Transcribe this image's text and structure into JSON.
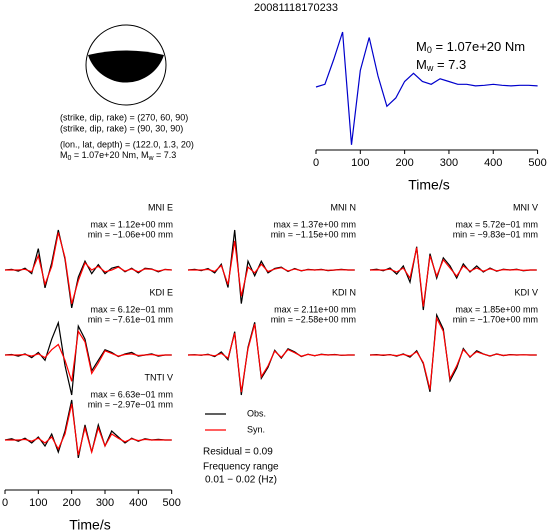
{
  "header": {
    "title": "20081118170233"
  },
  "focal_mechanism": {
    "lines": [
      "(strike, dip, rake) = (270, 60, 90)",
      "(strike, dip, rake) = (90, 30, 90)",
      "(lon., lat, depth) = (122.0, 1.3, 20)"
    ],
    "moment_line": {
      "parts": [
        "M",
        "0",
        " = 1.07e+20 Nm, M",
        "w",
        " = 7.3"
      ]
    }
  },
  "fit": {
    "residual": "Residual = 0.09",
    "frequency_title": "Frequency range",
    "frequency_band": "0.01 − 0.02 (Hz)"
  },
  "chart_data": [
    {
      "type": "line",
      "xlabel": "Time/s",
      "xlim": [
        0,
        510
      ],
      "xticks": [
        0,
        100,
        200,
        300,
        400,
        500
      ],
      "annotations": [
        {
          "parts": [
            "M",
            "0",
            " = 1.07e+20 Nm"
          ]
        },
        {
          "parts": [
            "M",
            "w",
            " = 7.3"
          ]
        }
      ],
      "x": [
        0,
        20,
        40,
        60,
        80,
        100,
        120,
        140,
        160,
        180,
        200,
        220,
        240,
        260,
        280,
        300,
        320,
        340,
        360,
        380,
        400,
        420,
        440,
        460,
        480,
        500
      ],
      "series": [
        {
          "color": "#0000cc",
          "values": [
            0,
            0.05,
            0.5,
            1,
            -1.05,
            0.3,
            0.9,
            0.2,
            -0.35,
            -0.2,
            0.1,
            0.25,
            0.1,
            0.05,
            0.15,
            0.1,
            0.05,
            0.05,
            0.02,
            0.03,
            0.05,
            0.03,
            0.02,
            0.03,
            0.03,
            0.02
          ]
        }
      ]
    },
    {
      "type": "line",
      "title": "MNI E",
      "annotations": [
        "max = 1.12e+00 mm",
        "min = −1.06e+00 mm"
      ],
      "xlim": [
        0,
        510
      ],
      "x": [
        0,
        20,
        40,
        60,
        80,
        100,
        120,
        140,
        160,
        180,
        200,
        220,
        240,
        260,
        280,
        300,
        320,
        340,
        360,
        380,
        400,
        420,
        440,
        460,
        480,
        500
      ],
      "series": [
        {
          "name": "Obs.",
          "color": "#000000",
          "values": [
            0,
            0.02,
            -0.03,
            0.05,
            -0.1,
            0.6,
            -0.5,
            0.2,
            1.12,
            0.3,
            -1.06,
            -0.2,
            0.25,
            -0.1,
            0.15,
            -0.1,
            0.05,
            0.1,
            -0.05,
            0.05,
            -0.08,
            0.05,
            0.03,
            -0.05,
            0.02,
            0
          ]
        },
        {
          "name": "Syn.",
          "color": "#ff0000",
          "values": [
            0,
            0,
            0,
            0.02,
            -0.05,
            0.4,
            -0.4,
            0.1,
            1.05,
            0.35,
            -0.95,
            -0.3,
            0.2,
            0,
            0.1,
            -0.05,
            0,
            0.08,
            -0.03,
            0.03,
            -0.05,
            0.03,
            0.02,
            -0.03,
            0.01,
            0
          ]
        }
      ]
    },
    {
      "type": "line",
      "title": "MNI N",
      "annotations": [
        "max = 1.37e+00 mm",
        "min = −1.15e+00 mm"
      ],
      "xlim": [
        0,
        510
      ],
      "x": [
        0,
        20,
        40,
        60,
        80,
        100,
        120,
        140,
        160,
        180,
        200,
        220,
        240,
        260,
        280,
        300,
        320,
        340,
        360,
        380,
        400,
        420,
        440,
        460,
        480,
        500
      ],
      "series": [
        {
          "name": "Obs.",
          "color": "#000000",
          "values": [
            0,
            0.02,
            -0.02,
            0.05,
            -0.1,
            0.2,
            -0.6,
            1.37,
            -1.15,
            0.3,
            -0.2,
            0.3,
            -0.1,
            0.05,
            0.1,
            -0.05,
            0.05,
            -0.03,
            0.02,
            0,
            0.02,
            -0.02,
            0,
            0.02,
            0,
            0
          ]
        },
        {
          "name": "Syn.",
          "color": "#ff0000",
          "values": [
            0,
            0,
            0,
            0.02,
            -0.05,
            0.15,
            -0.5,
            1.0,
            -0.9,
            0.1,
            -0.1,
            0.2,
            -0.05,
            0.03,
            0.08,
            -0.03,
            0.03,
            -0.02,
            0.01,
            0,
            0.01,
            -0.01,
            0,
            0.01,
            0,
            0
          ]
        }
      ]
    },
    {
      "type": "line",
      "title": "MNI V",
      "annotations": [
        "max = 5.72e−01 mm",
        "min = −9.83e−01 mm"
      ],
      "xlim": [
        0,
        510
      ],
      "x": [
        0,
        20,
        40,
        60,
        80,
        100,
        120,
        140,
        160,
        180,
        200,
        220,
        240,
        260,
        280,
        300,
        320,
        340,
        360,
        380,
        400,
        420,
        440,
        460,
        480,
        500
      ],
      "series": [
        {
          "name": "Obs.",
          "color": "#000000",
          "values": [
            0,
            0.02,
            -0.02,
            0.05,
            -0.1,
            0.1,
            -0.3,
            0.572,
            -0.983,
            0.4,
            -0.2,
            0.3,
            0.1,
            -0.2,
            0.15,
            -0.05,
            0.1,
            -0.05,
            0.05,
            -0.03,
            0.02,
            0,
            0.02,
            -0.02,
            0,
            0
          ]
        },
        {
          "name": "Syn.",
          "color": "#ff0000",
          "values": [
            0,
            0,
            0,
            0.02,
            -0.05,
            0.05,
            -0.2,
            0.55,
            -0.9,
            0.35,
            -0.15,
            0.25,
            0.05,
            -0.15,
            0.1,
            -0.03,
            0.05,
            -0.03,
            0.03,
            -0.02,
            0.01,
            0,
            0.01,
            -0.01,
            0,
            0
          ]
        }
      ]
    },
    {
      "type": "line",
      "title": "KDI E",
      "annotations": [
        "max = 6.12e−01 mm",
        "min = −7.61e−01 mm"
      ],
      "xlim": [
        0,
        510
      ],
      "x": [
        0,
        20,
        40,
        60,
        80,
        100,
        120,
        140,
        160,
        180,
        200,
        220,
        240,
        260,
        280,
        300,
        320,
        340,
        360,
        380,
        400,
        420,
        440,
        460,
        480,
        500
      ],
      "series": [
        {
          "name": "Obs.",
          "color": "#000000",
          "values": [
            0,
            0.01,
            -0.02,
            0.02,
            -0.05,
            0.05,
            -0.1,
            0.3,
            0.612,
            -0.2,
            -0.761,
            0.55,
            0.3,
            -0.3,
            -0.1,
            0.1,
            0.05,
            -0.03,
            0.02,
            0.05,
            -0.02,
            0,
            0.02,
            -0.02,
            0,
            0
          ]
        },
        {
          "name": "Syn.",
          "color": "#ff0000",
          "values": [
            0,
            0,
            0,
            0.01,
            -0.02,
            0.02,
            -0.05,
            0.1,
            0.2,
            -0.1,
            -0.5,
            0.45,
            0.25,
            -0.35,
            -0.15,
            0.08,
            0.03,
            -0.02,
            0.01,
            0.02,
            -0.01,
            0,
            0.01,
            -0.01,
            0,
            0
          ]
        }
      ]
    },
    {
      "type": "line",
      "title": "KDI N",
      "annotations": [
        "max = 2.11e+00 mm",
        "min = −2.58e+00 mm"
      ],
      "xlim": [
        0,
        510
      ],
      "x": [
        0,
        20,
        40,
        60,
        80,
        100,
        120,
        140,
        160,
        180,
        200,
        220,
        240,
        260,
        280,
        300,
        320,
        340,
        360,
        380,
        400,
        420,
        440,
        460,
        480,
        500
      ],
      "series": [
        {
          "name": "Obs.",
          "color": "#000000",
          "values": [
            0,
            0.02,
            -0.02,
            0.05,
            -0.1,
            0.2,
            -0.3,
            1.5,
            -2.58,
            0.5,
            2.11,
            -1.5,
            -0.8,
            0.3,
            -0.2,
            0.4,
            0.2,
            -0.1,
            0.05,
            -0.05,
            0.05,
            0,
            0.03,
            -0.02,
            0,
            0
          ]
        },
        {
          "name": "Syn.",
          "color": "#ff0000",
          "values": [
            0,
            0,
            0,
            0.02,
            -0.05,
            0.1,
            -0.2,
            1.4,
            -2.4,
            0.4,
            2.0,
            -1.4,
            -0.7,
            0.25,
            -0.15,
            0.35,
            0.15,
            -0.08,
            0.04,
            -0.04,
            0.03,
            0,
            0.02,
            -0.01,
            0,
            0
          ]
        }
      ]
    },
    {
      "type": "line",
      "title": "KDI V",
      "annotations": [
        "max = 1.85e+00 mm",
        "min = −1.70e+00 mm"
      ],
      "xlim": [
        0,
        510
      ],
      "x": [
        0,
        20,
        40,
        60,
        80,
        100,
        120,
        140,
        160,
        180,
        200,
        220,
        240,
        260,
        280,
        300,
        320,
        340,
        360,
        380,
        400,
        420,
        440,
        460,
        480,
        500
      ],
      "series": [
        {
          "name": "Obs.",
          "color": "#000000",
          "values": [
            0,
            0.02,
            -0.02,
            0.02,
            -0.05,
            0.05,
            -0.1,
            0.2,
            -0.4,
            -1.7,
            1.85,
            1.2,
            -1.2,
            -0.6,
            0.3,
            -0.1,
            0.2,
            0.05,
            -0.05,
            0.05,
            -0.03,
            0.02,
            0,
            0.01,
            0,
            0
          ]
        },
        {
          "name": "Syn.",
          "color": "#ff0000",
          "values": [
            0,
            0,
            0,
            0.01,
            -0.03,
            0.03,
            -0.05,
            0.15,
            -0.35,
            -1.6,
            1.7,
            1.1,
            -1.1,
            -0.5,
            0.25,
            -0.08,
            0.15,
            0.04,
            -0.04,
            0.04,
            -0.02,
            0.01,
            0,
            0.01,
            0,
            0
          ]
        }
      ]
    },
    {
      "type": "line",
      "title": "TNTI V",
      "annotations": [
        "max = 6.63e−01 mm",
        "min = −2.97e−01 mm"
      ],
      "xlim": [
        0,
        510
      ],
      "xlabel": "Time/s",
      "xticks": [
        0,
        100,
        200,
        300,
        400,
        500
      ],
      "x": [
        0,
        20,
        40,
        60,
        80,
        100,
        120,
        140,
        160,
        180,
        200,
        220,
        240,
        260,
        280,
        300,
        320,
        340,
        360,
        380,
        400,
        420,
        440,
        460,
        480,
        500
      ],
      "series": [
        {
          "name": "Obs.",
          "color": "#000000",
          "values": [
            0,
            0.02,
            -0.02,
            0.03,
            -0.05,
            0.05,
            -0.1,
            0.1,
            -0.2,
            0.15,
            0.663,
            -0.297,
            0.25,
            -0.2,
            0.25,
            -0.1,
            0.15,
            0.05,
            -0.05,
            0.03,
            -0.02,
            0.02,
            0,
            0.01,
            0,
            0
          ]
        },
        {
          "name": "Syn.",
          "color": "#ff0000",
          "values": [
            0,
            0,
            0,
            0.01,
            -0.02,
            0.03,
            -0.05,
            0.05,
            -0.15,
            0.1,
            0.6,
            -0.25,
            0.2,
            -0.2,
            0.2,
            -0.1,
            0.1,
            0.03,
            -0.03,
            0.02,
            -0.01,
            0.01,
            0,
            0,
            0,
            0
          ]
        }
      ]
    }
  ]
}
